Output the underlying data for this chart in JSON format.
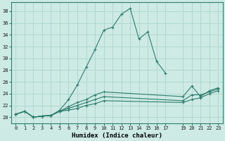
{
  "title": "",
  "xlabel": "Humidex (Indice chaleur)",
  "bg_color": "#cdeae4",
  "grid_color": "#b0d8d0",
  "line_color": "#2e7d6e",
  "xlim": [
    -0.5,
    23.5
  ],
  "ylim": [
    19.0,
    39.5
  ],
  "xticks": [
    0,
    1,
    2,
    3,
    4,
    5,
    6,
    7,
    8,
    9,
    10,
    11,
    12,
    13,
    14,
    15,
    16,
    17,
    19,
    20,
    21,
    22,
    23
  ],
  "xtick_labels": [
    "0",
    "1",
    "2",
    "3",
    "4",
    "5",
    "6",
    "7",
    "8",
    "9",
    "10",
    "11",
    "12",
    "13",
    "14",
    "15",
    "16",
    "17",
    "19",
    "20",
    "21",
    "22",
    "23"
  ],
  "yticks": [
    20,
    22,
    24,
    26,
    28,
    30,
    32,
    34,
    36,
    38
  ],
  "series": [
    {
      "x": [
        0,
        1,
        2,
        3,
        4,
        5,
        6,
        7,
        8,
        9,
        10,
        11,
        12,
        13,
        14,
        15,
        16,
        17
      ],
      "y": [
        20.5,
        21.0,
        20.0,
        20.2,
        20.3,
        21.2,
        23.0,
        25.5,
        28.5,
        31.5,
        34.8,
        35.3,
        37.5,
        38.5,
        33.3,
        34.5,
        29.5,
        27.5
      ]
    },
    {
      "x": [
        0,
        1,
        2,
        3,
        4,
        5,
        6,
        7,
        8,
        9,
        10,
        19,
        20,
        21,
        22,
        23
      ],
      "y": [
        20.5,
        21.0,
        20.0,
        20.2,
        20.3,
        21.0,
        21.8,
        22.5,
        23.0,
        23.8,
        24.3,
        23.5,
        25.3,
        23.5,
        24.5,
        25.0
      ]
    },
    {
      "x": [
        0,
        1,
        2,
        3,
        4,
        5,
        6,
        7,
        8,
        9,
        10,
        19,
        20,
        21,
        22,
        23
      ],
      "y": [
        20.5,
        21.0,
        20.0,
        20.2,
        20.3,
        21.0,
        21.5,
        22.0,
        22.5,
        23.0,
        23.5,
        22.8,
        23.8,
        23.8,
        24.3,
        24.8
      ]
    },
    {
      "x": [
        0,
        1,
        2,
        3,
        4,
        5,
        6,
        7,
        8,
        9,
        10,
        19,
        20,
        21,
        22,
        23
      ],
      "y": [
        20.5,
        21.0,
        20.0,
        20.2,
        20.3,
        21.0,
        21.2,
        21.5,
        22.0,
        22.3,
        22.8,
        22.5,
        23.0,
        23.3,
        24.0,
        24.5
      ]
    }
  ]
}
